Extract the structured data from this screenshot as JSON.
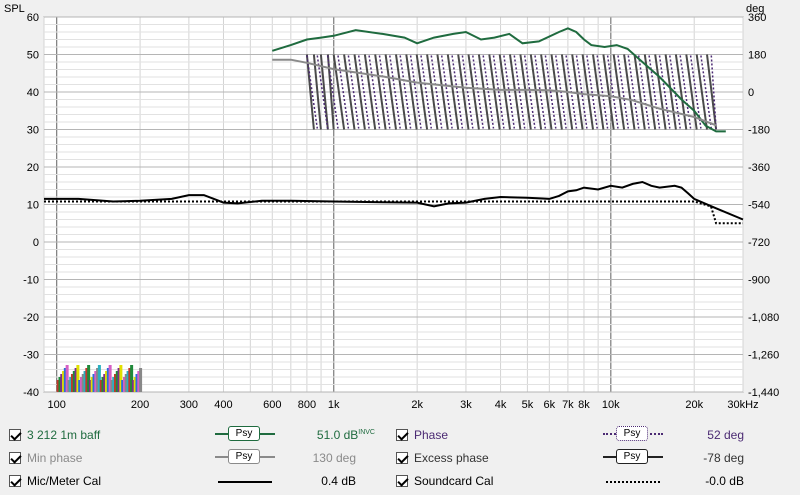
{
  "chart_data": {
    "type": "line",
    "xscale": "log",
    "xlim": [
      90,
      30000
    ],
    "ylim_left": [
      -40,
      60
    ],
    "ylim_right": [
      -1440,
      360
    ],
    "ylabel_left": "SPL",
    "ylabel_right": "deg",
    "x_ticks": [
      {
        "v": 100,
        "t": "100"
      },
      {
        "v": 200,
        "t": "200"
      },
      {
        "v": 300,
        "t": "300"
      },
      {
        "v": 400,
        "t": "400"
      },
      {
        "v": 600,
        "t": "600"
      },
      {
        "v": 800,
        "t": "800"
      },
      {
        "v": 1000,
        "t": "1k"
      },
      {
        "v": 2000,
        "t": "2k"
      },
      {
        "v": 3000,
        "t": "3k"
      },
      {
        "v": 4000,
        "t": "4k"
      },
      {
        "v": 5000,
        "t": "5k"
      },
      {
        "v": 6000,
        "t": "6k"
      },
      {
        "v": 7000,
        "t": "7k"
      },
      {
        "v": 8000,
        "t": "8k"
      },
      {
        "v": 10000,
        "t": "10k"
      },
      {
        "v": 20000,
        "t": "20k"
      },
      {
        "v": 30000,
        "t": "30kHz"
      }
    ],
    "y_ticks_left": [
      "60",
      "50",
      "40",
      "30",
      "20",
      "10",
      "0",
      "-10",
      "-20",
      "-30",
      "-40"
    ],
    "y_ticks_right": [
      "360",
      "180",
      "0",
      "-180",
      "-360",
      "-540",
      "-720",
      "-900",
      "-1,080",
      "-1,260",
      "-1,440"
    ],
    "series": [
      {
        "name": "3 212 1m baff",
        "color": "#1f6b3f",
        "axis": "left",
        "points": [
          [
            600,
            51
          ],
          [
            700,
            52.5
          ],
          [
            800,
            54
          ],
          [
            900,
            54.5
          ],
          [
            1000,
            55
          ],
          [
            1200,
            56.5
          ],
          [
            1500,
            55.5
          ],
          [
            1800,
            54.5
          ],
          [
            2000,
            53
          ],
          [
            2300,
            54.5
          ],
          [
            2700,
            55.5
          ],
          [
            3000,
            56
          ],
          [
            3400,
            54
          ],
          [
            3800,
            54.5
          ],
          [
            4300,
            55.5
          ],
          [
            4800,
            53
          ],
          [
            5500,
            53.5
          ],
          [
            6500,
            56
          ],
          [
            7000,
            57
          ],
          [
            7500,
            56
          ],
          [
            8000,
            54
          ],
          [
            8500,
            52.5
          ],
          [
            9500,
            52
          ],
          [
            10500,
            52.5
          ],
          [
            11500,
            51.5
          ],
          [
            13000,
            48
          ],
          [
            15000,
            44
          ],
          [
            18000,
            38
          ],
          [
            20000,
            35
          ],
          [
            22000,
            31
          ],
          [
            24000,
            29.5
          ],
          [
            26000,
            29.5
          ]
        ]
      },
      {
        "name": "Mic/Meter Cal",
        "color": "#000000",
        "axis": "left",
        "points": [
          [
            90,
            11.5
          ],
          [
            120,
            11.5
          ],
          [
            160,
            10.8
          ],
          [
            200,
            11
          ],
          [
            260,
            11.5
          ],
          [
            300,
            12.5
          ],
          [
            340,
            12.5
          ],
          [
            400,
            10.5
          ],
          [
            450,
            10.3
          ],
          [
            550,
            11
          ],
          [
            700,
            11
          ],
          [
            1000,
            10.8
          ],
          [
            1500,
            10.6
          ],
          [
            2000,
            10.5
          ],
          [
            2300,
            9.5
          ],
          [
            2600,
            10.3
          ],
          [
            3000,
            10.5
          ],
          [
            3500,
            11.5
          ],
          [
            4000,
            12
          ],
          [
            5000,
            11.8
          ],
          [
            6000,
            11.5
          ],
          [
            6500,
            12.3
          ],
          [
            7000,
            13.5
          ],
          [
            7500,
            13.8
          ],
          [
            8000,
            14.5
          ],
          [
            9000,
            14
          ],
          [
            10000,
            15
          ],
          [
            11000,
            14.5
          ],
          [
            12000,
            15.5
          ],
          [
            13000,
            16
          ],
          [
            14000,
            15
          ],
          [
            15000,
            14.5
          ],
          [
            17000,
            15
          ],
          [
            18000,
            14.5
          ],
          [
            19000,
            13
          ],
          [
            20000,
            11.5
          ],
          [
            24000,
            9
          ],
          [
            30000,
            6
          ]
        ]
      },
      {
        "name": "Soundcard Cal",
        "color": "#000000",
        "dash": "2,2",
        "axis": "left",
        "points": [
          [
            90,
            10.8
          ],
          [
            10000,
            10.8
          ],
          [
            20000,
            10.8
          ],
          [
            23000,
            9.5
          ],
          [
            24000,
            5
          ],
          [
            30000,
            5
          ]
        ]
      },
      {
        "name": "Min phase",
        "color": "#8a8a8a",
        "axis": "right",
        "points": [
          [
            600,
            155
          ],
          [
            700,
            155
          ],
          [
            800,
            140
          ],
          [
            1000,
            110
          ],
          [
            1500,
            75
          ],
          [
            2000,
            45
          ],
          [
            3000,
            20
          ],
          [
            4000,
            10
          ],
          [
            5000,
            10
          ],
          [
            6000,
            8
          ],
          [
            7000,
            0
          ],
          [
            8000,
            -10
          ],
          [
            10000,
            -20
          ],
          [
            12000,
            -40
          ],
          [
            15000,
            -80
          ],
          [
            20000,
            -120
          ],
          [
            24000,
            -160
          ]
        ]
      }
    ]
  },
  "legend": {
    "r1": {
      "name": "3 212 1m baff",
      "psy": "Psy",
      "value": "51.0 dB",
      "sup": "INVC",
      "name2": "Phase",
      "psy2": "Psy",
      "value2": "52 deg"
    },
    "r2": {
      "name": "Min phase",
      "psy": "Psy",
      "value": "130 deg",
      "name2": "Excess phase",
      "psy2": "Psy",
      "value2": "-78 deg"
    },
    "r3": {
      "name": "Mic/Meter Cal",
      "value": "0.4 dB",
      "name2": "Soundcard Cal",
      "value2": "-0.0 dB"
    }
  },
  "colors": {
    "green": "#1f6b3f",
    "phase": "#4b2a73",
    "grey": "#8a8a8a"
  }
}
